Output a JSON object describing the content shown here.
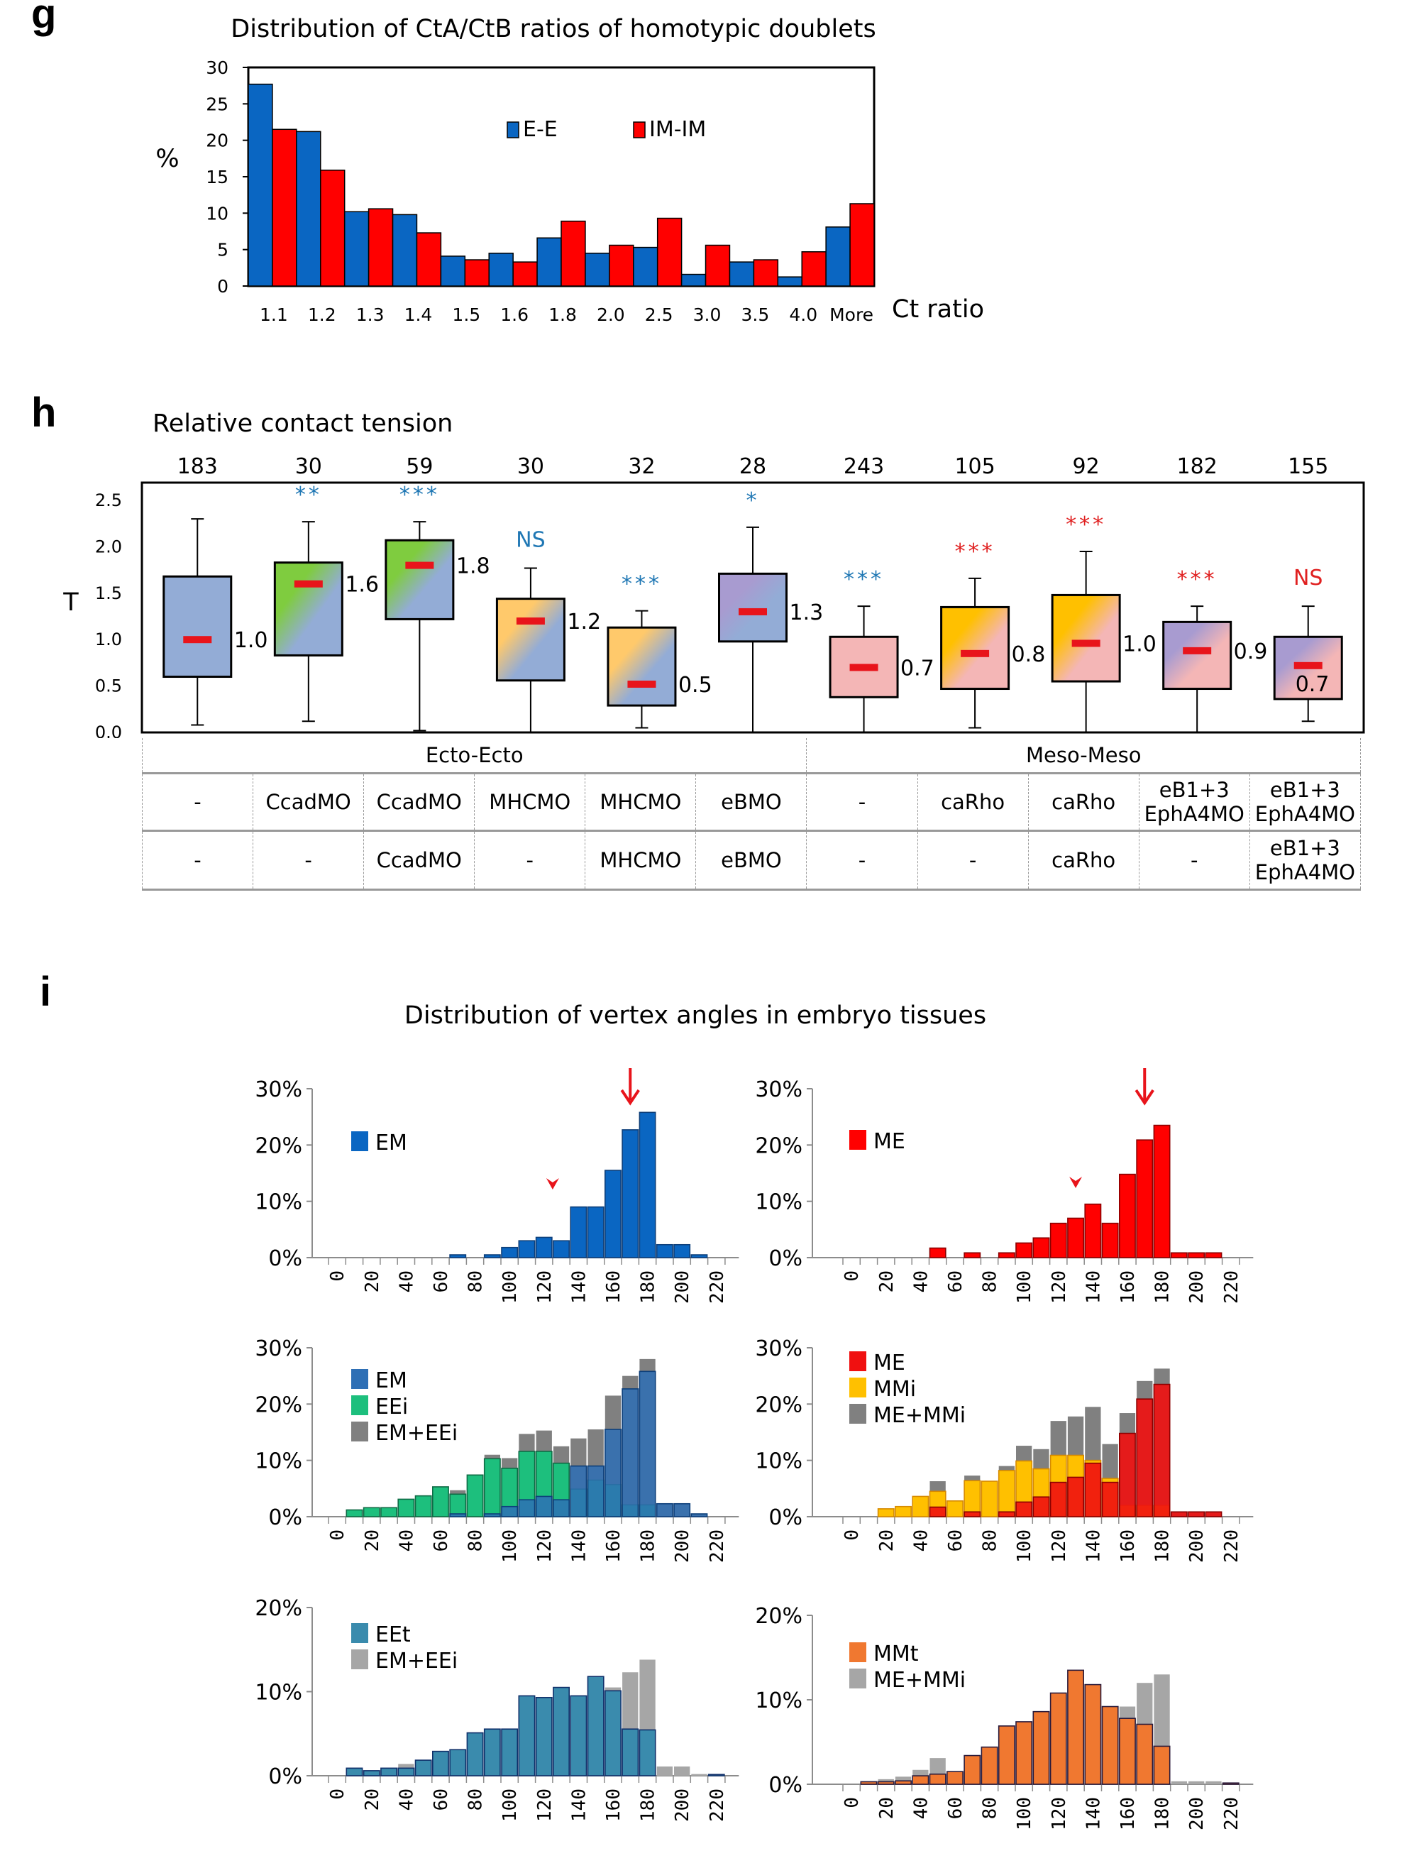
{
  "panel_labels": {
    "g": "g",
    "h": "h",
    "i": "i"
  },
  "chart_data": [
    {
      "id": "g",
      "type": "bar",
      "title": "Distribution of CtA/CtB ratios of homotypic doublets",
      "xlabel": "Ct ratio",
      "ylabel": "%",
      "ylim": [
        0,
        30
      ],
      "yticks": [
        0,
        5,
        10,
        15,
        20,
        25,
        30
      ],
      "legend_position": "top-center",
      "categories": [
        "1.1",
        "1.2",
        "1.3",
        "1.4",
        "1.5",
        "1.6",
        "1.8",
        "2.0",
        "2.5",
        "3.0",
        "3.5",
        "4.0",
        "More"
      ],
      "series": [
        {
          "name": "E-E",
          "color": "#0a66c2",
          "values": [
            27.7,
            21.2,
            10.2,
            9.8,
            4.1,
            4.5,
            6.6,
            4.5,
            5.3,
            1.6,
            3.3,
            1.25,
            8.1
          ]
        },
        {
          "name": "IM-IM",
          "color": "#ff0000",
          "values": [
            21.5,
            15.9,
            10.6,
            7.3,
            3.6,
            3.3,
            8.9,
            5.6,
            9.3,
            5.6,
            3.6,
            4.7,
            11.3
          ]
        }
      ]
    },
    {
      "id": "h",
      "type": "box",
      "title": "Relative contact tension",
      "ylabel": "T",
      "ylim": [
        0,
        2.5
      ],
      "yticks": [
        "0.0",
        "0.5",
        "1.0",
        "1.5",
        "2.0",
        "2.5"
      ],
      "boxes": [
        {
          "n": "183",
          "sig": "",
          "sig_color": "#1f77b4",
          "median_label": "1.0",
          "min": 0.08,
          "q1": 0.6,
          "median": 1.0,
          "q3": 1.68,
          "max": 2.3,
          "fill": [
            "#93acd6",
            "#93acd6"
          ]
        },
        {
          "n": "30",
          "sig": "**",
          "sig_color": "#1f77b4",
          "median_label": "1.6",
          "min": 0.12,
          "q1": 0.83,
          "median": 1.6,
          "q3": 1.83,
          "max": 2.27,
          "fill": [
            "#7fcc3f",
            "#93acd6"
          ]
        },
        {
          "n": "59",
          "sig": "***",
          "sig_color": "#1f77b4",
          "median_label": "1.8",
          "min": 0.02,
          "q1": 1.22,
          "median": 1.8,
          "q3": 2.07,
          "max": 2.27,
          "fill": [
            "#7fcc3f",
            "#93acd6"
          ]
        },
        {
          "n": "30",
          "sig": "NS",
          "sig_color": "#1f77b4",
          "median_label": "1.2",
          "min": 0.0,
          "q1": 0.56,
          "median": 1.2,
          "q3": 1.44,
          "max": 1.77,
          "fill": [
            "#ffc96b",
            "#93acd6"
          ]
        },
        {
          "n": "32",
          "sig": "***",
          "sig_color": "#1f77b4",
          "median_label": "0.5",
          "min": 0.05,
          "q1": 0.29,
          "median": 0.52,
          "q3": 1.13,
          "max": 1.31,
          "fill": [
            "#ffc96b",
            "#93acd6"
          ]
        },
        {
          "n": "28",
          "sig": "*",
          "sig_color": "#1f77b4",
          "median_label": "1.3",
          "min": 0.0,
          "q1": 0.98,
          "median": 1.3,
          "q3": 1.71,
          "max": 2.21,
          "fill": [
            "#a89bd0",
            "#93acd6"
          ]
        },
        {
          "n": "243",
          "sig": "***",
          "sig_color": "#1f77b4",
          "median_label": "0.7",
          "min": 0.0,
          "q1": 0.38,
          "median": 0.7,
          "q3": 1.03,
          "max": 1.36,
          "fill": [
            "#f4b6b6",
            "#f4b6b6"
          ]
        },
        {
          "n": "105",
          "sig": "***",
          "sig_color": "#e02020",
          "median_label": "0.8",
          "min": 0.05,
          "q1": 0.47,
          "median": 0.85,
          "q3": 1.35,
          "max": 1.66,
          "fill": [
            "#ffc000",
            "#f4b6b6"
          ]
        },
        {
          "n": "92",
          "sig": "***",
          "sig_color": "#e02020",
          "median_label": "1.0",
          "min": 0.0,
          "q1": 0.55,
          "median": 0.96,
          "q3": 1.48,
          "max": 1.95,
          "fill": [
            "#ffc000",
            "#f4b6b6"
          ]
        },
        {
          "n": "182",
          "sig": "***",
          "sig_color": "#e02020",
          "median_label": "0.9",
          "min": 0.0,
          "q1": 0.47,
          "median": 0.88,
          "q3": 1.19,
          "max": 1.36,
          "fill": [
            "#a89bd0",
            "#f4b6b6"
          ]
        },
        {
          "n": "155",
          "sig": "NS",
          "sig_color": "#e02020",
          "median_label": "0.7",
          "min": 0.12,
          "q1": 0.36,
          "median": 0.72,
          "q3": 1.03,
          "max": 1.36,
          "fill": [
            "#a89bd0",
            "#f4b6b6"
          ]
        }
      ],
      "conditions_table": {
        "groups": [
          {
            "label": "Ecto-Ecto",
            "span": 6
          },
          {
            "label": "Meso-Meso",
            "span": 5
          }
        ],
        "row1": [
          "-",
          "CcadMO",
          "CcadMO",
          "MHCMO",
          "MHCMO",
          "eBMO",
          "-",
          "caRho",
          "caRho",
          "eB1+3\nEphA4MO",
          "eB1+3\nEphA4MO"
        ],
        "row2": [
          "-",
          "-",
          "CcadMO",
          "-",
          "MHCMO",
          "eBMO",
          "-",
          "-",
          "caRho",
          "-",
          "eB1+3\nEphA4MO"
        ]
      }
    },
    {
      "id": "i",
      "type": "bar",
      "title": "Distribution of vertex angles in embryo tissues",
      "x_categories": [
        0,
        10,
        20,
        30,
        40,
        50,
        60,
        70,
        80,
        90,
        100,
        110,
        120,
        130,
        140,
        150,
        160,
        170,
        180,
        190,
        200,
        210,
        220
      ],
      "x_tick_labels": [
        "0",
        "20",
        "40",
        "60",
        "80",
        "100",
        "120",
        "140",
        "160",
        "180",
        "200",
        "220"
      ],
      "subplots": [
        {
          "id": "em",
          "ylim": [
            0,
            30
          ],
          "yticks": [
            "0%",
            "10%",
            "20%",
            "30%"
          ],
          "arrow_at": 170,
          "arrowhead_at": 125,
          "series": [
            {
              "name": "EM",
              "color": "#0a66c2",
              "border": "#0d3f7a",
              "legend": true,
              "values": [
                0,
                0,
                0,
                0,
                0,
                0,
                0,
                0.5,
                0,
                0.5,
                1.8,
                3.0,
                3.6,
                3.0,
                9.0,
                9.0,
                15.5,
                22.7,
                25.8,
                2.3,
                2.3,
                0.5,
                0
              ]
            }
          ]
        },
        {
          "id": "me",
          "ylim": [
            0,
            30
          ],
          "yticks": [
            "0%",
            "10%",
            "20%",
            "30%"
          ],
          "arrow_at": 170,
          "arrowhead_at": 130,
          "series": [
            {
              "name": "ME",
              "color": "#ff0000",
              "border": "#8b0000",
              "legend": true,
              "values": [
                0,
                0,
                0,
                0,
                0,
                1.7,
                0,
                0.85,
                0,
                0.85,
                2.6,
                3.5,
                6.1,
                7.0,
                9.5,
                6.1,
                14.8,
                20.9,
                23.5,
                0.85,
                0.85,
                0.85,
                0
              ]
            }
          ]
        },
        {
          "id": "em-eei",
          "ylim": [
            0,
            30
          ],
          "yticks": [
            "0%",
            "10%",
            "20%",
            "30%"
          ],
          "series": [
            {
              "name": "EM+EEi",
              "color": "#808080",
              "border": "none",
              "legend": true,
              "values": [
                0,
                1.2,
                1.6,
                1.6,
                3.1,
                3.7,
                5.3,
                4.7,
                7.4,
                11.0,
                10.4,
                14.7,
                15.3,
                12.5,
                13.9,
                15.5,
                21.5,
                25.0,
                28.0,
                2.3,
                2.3,
                0.5,
                0
              ]
            },
            {
              "name": "EEi",
              "color": "#1dbf7d",
              "border": "#0f6b45",
              "legend": true,
              "values": [
                0,
                1.2,
                1.6,
                1.6,
                3.1,
                3.7,
                5.3,
                4.0,
                7.4,
                10.3,
                8.6,
                11.6,
                11.6,
                9.5,
                4.9,
                6.5,
                5.7,
                2.1,
                2.1,
                0,
                0,
                0,
                0
              ]
            },
            {
              "name": "EM",
              "color": "#2e6fb5",
              "border": "#0d3f7a",
              "legend": true,
              "opacity": 0.85,
              "values": [
                0,
                0,
                0,
                0,
                0,
                0,
                0,
                0.5,
                0,
                0.5,
                1.8,
                3.0,
                3.6,
                3.0,
                9.0,
                9.0,
                15.5,
                22.7,
                25.8,
                2.3,
                2.3,
                0.5,
                0
              ]
            }
          ],
          "legend_order": [
            "EM",
            "EEi",
            "EM+EEi"
          ]
        },
        {
          "id": "me-mmi",
          "ylim": [
            0,
            30
          ],
          "yticks": [
            "0%",
            "10%",
            "20%",
            "30%"
          ],
          "series": [
            {
              "name": "ME+MMi",
              "color": "#808080",
              "border": "none",
              "legend": true,
              "values": [
                0,
                0,
                1.4,
                1.8,
                3.6,
                6.3,
                2.8,
                7.3,
                6.3,
                9.0,
                12.6,
                12.0,
                17.0,
                17.8,
                19.5,
                12.9,
                18.4,
                24.1,
                26.3,
                0.85,
                0.85,
                0.85,
                0
              ]
            },
            {
              "name": "MMi",
              "color": "#ffc000",
              "border": "#d68a00",
              "legend": true,
              "values": [
                0,
                0,
                1.4,
                1.8,
                3.6,
                4.5,
                2.8,
                6.4,
                6.3,
                8.2,
                9.9,
                8.5,
                10.9,
                10.9,
                10.0,
                6.8,
                2.0,
                2.0,
                2.0,
                0,
                0,
                0,
                0
              ]
            },
            {
              "name": "ME",
              "color": "#f01010",
              "border": "#8b0000",
              "legend": true,
              "opacity": 0.9,
              "values": [
                0,
                0,
                0,
                0,
                0,
                1.7,
                0,
                0.85,
                0,
                0.85,
                2.6,
                3.5,
                6.1,
                7.0,
                9.5,
                6.1,
                14.8,
                20.9,
                23.5,
                0.85,
                0.85,
                0.85,
                0
              ]
            }
          ],
          "legend_order": [
            "ME",
            "MMi",
            "ME+MMi"
          ]
        },
        {
          "id": "eet",
          "ylim": [
            0,
            20
          ],
          "yticks": [
            "0%",
            "10%",
            "20%"
          ],
          "series": [
            {
              "name": "EM+EEi",
              "color": "#a6a6a6",
              "border": "none",
              "legend": true,
              "values": [
                0,
                0.9,
                0.6,
                0.9,
                1.4,
                1.85,
                2.9,
                3.1,
                5.1,
                5.55,
                5.55,
                9.5,
                9.3,
                10.5,
                9.5,
                11.8,
                10.5,
                12.3,
                13.8,
                1.1,
                1.1,
                0.2,
                0
              ]
            },
            {
              "name": "EEt",
              "color": "#3a8bad",
              "border": "#10306a",
              "legend": true,
              "values": [
                0,
                0.9,
                0.6,
                0.9,
                0.9,
                1.85,
                2.9,
                3.1,
                5.1,
                5.55,
                5.55,
                9.5,
                9.3,
                10.5,
                9.5,
                11.8,
                10.1,
                5.55,
                5.45,
                0,
                0,
                0,
                0.15
              ]
            }
          ],
          "legend_order": [
            "EEt",
            "EM+EEi"
          ]
        },
        {
          "id": "mmt",
          "ylim": [
            0,
            20
          ],
          "yticks": [
            "0%",
            "10%",
            "20%"
          ],
          "series": [
            {
              "name": "ME+MMi",
              "color": "#a6a6a6",
              "border": "none",
              "legend": true,
              "values": [
                0,
                0.3,
                0.6,
                0.9,
                1.7,
                3.1,
                1.5,
                3.4,
                4.4,
                6.9,
                7.4,
                8.6,
                10.8,
                13.5,
                11.8,
                9.2,
                9.2,
                12.0,
                13.0,
                0.35,
                0.35,
                0.35,
                0
              ]
            },
            {
              "name": "MMt",
              "color": "#f07830",
              "border": "#2a1a3a",
              "legend": true,
              "values": [
                0,
                0.3,
                0.3,
                0.4,
                1.0,
                1.2,
                1.5,
                3.4,
                4.4,
                6.9,
                7.4,
                8.6,
                10.8,
                13.5,
                11.8,
                9.2,
                7.8,
                7.1,
                4.5,
                0,
                0,
                0,
                0.15
              ]
            }
          ],
          "legend_order": [
            "MMt",
            "ME+MMi"
          ]
        }
      ]
    }
  ]
}
